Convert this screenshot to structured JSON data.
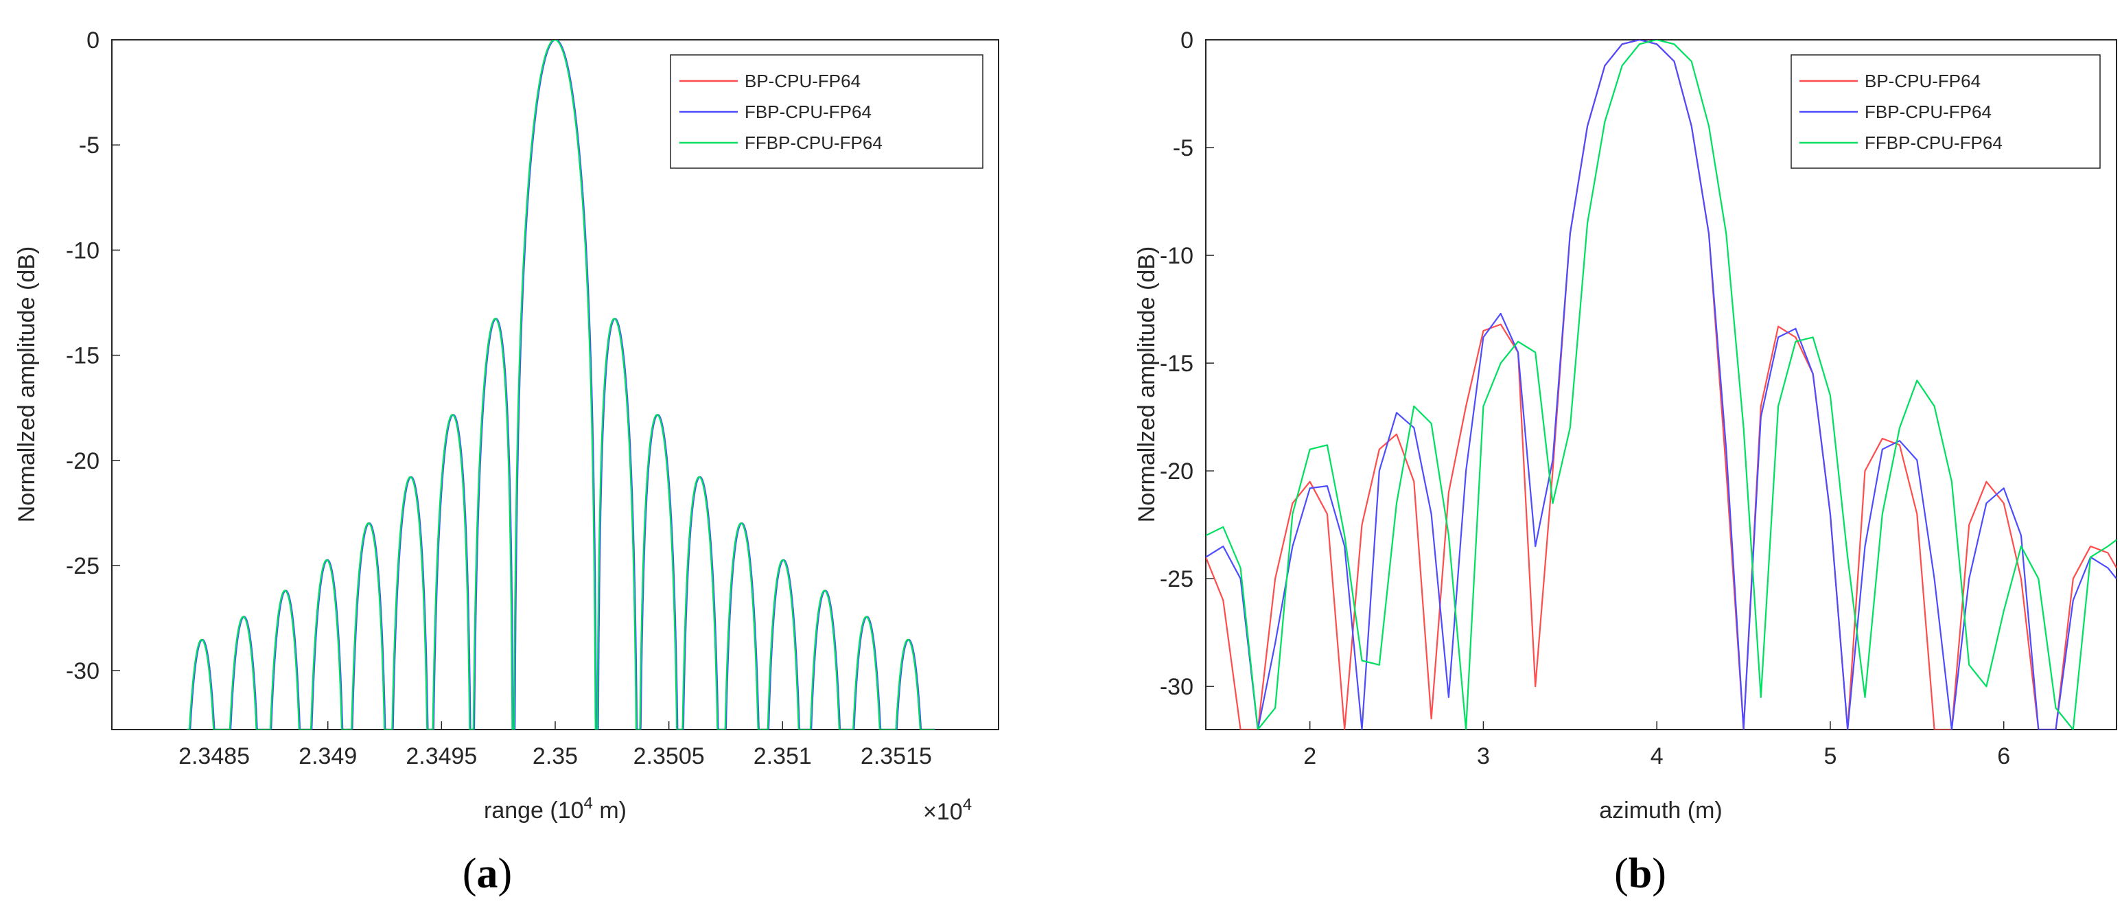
{
  "chart_data": [
    {
      "type": "line",
      "panel": "a",
      "caption": "a",
      "title": "",
      "xlabel_prefix": "range (10",
      "xlabel_exp": "4",
      "xlabel_suffix": " m)",
      "x_multiplier_base": "×10",
      "x_multiplier_exp": "4",
      "ylabel": "Normallzed amplitude (dB)",
      "xlim": [
        2.34805,
        2.35195
      ],
      "ylim": [
        -32.8,
        0
      ],
      "xticks": [
        2.3485,
        2.349,
        2.3495,
        2.35,
        2.3505,
        2.351,
        2.3515
      ],
      "xtick_labels": [
        "2.3485",
        "2.349",
        "2.3495",
        "2.35",
        "2.3505",
        "2.351",
        "2.3515"
      ],
      "yticks": [
        0,
        -5,
        -10,
        -15,
        -20,
        -25,
        -30
      ],
      "ytick_labels": [
        "0",
        "-5",
        "-10",
        "-15",
        "-20",
        "-25",
        "-30"
      ],
      "legend_position": "top-right",
      "grid": false,
      "sinc_model": {
        "center": 2.35,
        "null_spacing": 0.000183,
        "x_start": 2.34838,
        "x_end": 2.35167,
        "floor_db": -32.8
      },
      "series": [
        {
          "name": "BP-CPU-FP64",
          "color": "#ff4d4d"
        },
        {
          "name": "FBP-CPU-FP64",
          "color": "#4d4dff"
        },
        {
          "name": "FFBP-CPU-FP64",
          "color": "#00e060"
        }
      ]
    },
    {
      "type": "line",
      "panel": "b",
      "caption": "b",
      "title": "",
      "xlabel": "azimuth (m)",
      "ylabel": "Normallzed amplitude (dB)",
      "xlim": [
        1.4,
        6.65
      ],
      "ylim": [
        -32,
        0
      ],
      "xticks": [
        2,
        3,
        4,
        5,
        6
      ],
      "xtick_labels": [
        "2",
        "3",
        "4",
        "5",
        "6"
      ],
      "yticks": [
        0,
        -5,
        -10,
        -15,
        -20,
        -25,
        -30
      ],
      "ytick_labels": [
        "0",
        "-5",
        "-10",
        "-15",
        "-20",
        "-25",
        "-30"
      ],
      "legend_position": "top-right",
      "grid": false,
      "series": [
        {
          "name": "BP-CPU-FP64",
          "color": "#ff4d4d",
          "x": [
            1.4,
            1.5,
            1.6,
            1.7,
            1.8,
            1.9,
            2.0,
            2.1,
            2.2,
            2.3,
            2.4,
            2.5,
            2.6,
            2.7,
            2.8,
            2.9,
            3.0,
            3.1,
            3.2,
            3.3,
            3.4,
            3.5,
            3.6,
            3.7,
            3.8,
            3.9,
            4.0,
            4.1,
            4.2,
            4.3,
            4.4,
            4.5,
            4.6,
            4.7,
            4.8,
            4.9,
            5.0,
            5.1,
            5.2,
            5.3,
            5.4,
            5.5,
            5.6,
            5.7,
            5.8,
            5.9,
            6.0,
            6.1,
            6.2,
            6.3,
            6.4,
            6.5,
            6.6,
            6.65
          ],
          "y": [
            -24,
            -26,
            -32,
            -32,
            -25,
            -21.5,
            -20.5,
            -22,
            -32,
            -22.5,
            -19,
            -18.3,
            -20.5,
            -31.5,
            -21,
            -17,
            -13.5,
            -13.2,
            -14.5,
            -30,
            -20,
            -9,
            -4,
            -1.2,
            -0.2,
            0,
            -0.2,
            -1,
            -4,
            -9,
            -20,
            -32,
            -17,
            -13.3,
            -13.8,
            -15.5,
            -22,
            -32,
            -20,
            -18.5,
            -18.8,
            -22,
            -32,
            -32,
            -22.5,
            -20.5,
            -21.5,
            -25,
            -32,
            -32,
            -25,
            -23.5,
            -23.8,
            -24.5
          ]
        },
        {
          "name": "FBP-CPU-FP64",
          "color": "#4d4dff",
          "x": [
            1.4,
            1.5,
            1.6,
            1.7,
            1.8,
            1.9,
            2.0,
            2.1,
            2.2,
            2.3,
            2.4,
            2.5,
            2.6,
            2.7,
            2.8,
            2.9,
            3.0,
            3.1,
            3.2,
            3.3,
            3.4,
            3.5,
            3.6,
            3.7,
            3.8,
            3.9,
            4.0,
            4.1,
            4.2,
            4.3,
            4.4,
            4.5,
            4.6,
            4.7,
            4.8,
            4.9,
            5.0,
            5.1,
            5.2,
            5.3,
            5.4,
            5.5,
            5.6,
            5.7,
            5.8,
            5.9,
            6.0,
            6.1,
            6.2,
            6.3,
            6.4,
            6.5,
            6.6,
            6.65
          ],
          "y": [
            -24,
            -23.5,
            -25,
            -32,
            -28,
            -23.5,
            -20.8,
            -20.7,
            -23.5,
            -32,
            -20,
            -17.3,
            -18,
            -22,
            -30.5,
            -20,
            -13.8,
            -12.7,
            -14.5,
            -23.5,
            -19.5,
            -9,
            -4,
            -1.2,
            -0.2,
            0,
            -0.2,
            -1,
            -4,
            -9,
            -19,
            -32,
            -17.5,
            -13.8,
            -13.4,
            -15.5,
            -22,
            -32,
            -23.5,
            -19,
            -18.6,
            -19.5,
            -25,
            -32,
            -25,
            -21.5,
            -20.8,
            -23,
            -32,
            -32,
            -26,
            -24,
            -24.5,
            -25
          ]
        },
        {
          "name": "FFBP-CPU-FP64",
          "color": "#00e060",
          "x": [
            1.4,
            1.5,
            1.6,
            1.7,
            1.8,
            1.9,
            2.0,
            2.1,
            2.2,
            2.3,
            2.4,
            2.5,
            2.6,
            2.7,
            2.8,
            2.9,
            3.0,
            3.1,
            3.2,
            3.3,
            3.4,
            3.5,
            3.6,
            3.7,
            3.8,
            3.9,
            4.0,
            4.1,
            4.2,
            4.3,
            4.4,
            4.5,
            4.6,
            4.7,
            4.8,
            4.9,
            5.0,
            5.1,
            5.2,
            5.3,
            5.4,
            5.5,
            5.6,
            5.7,
            5.8,
            5.9,
            6.0,
            6.1,
            6.2,
            6.3,
            6.4,
            6.5,
            6.6,
            6.65
          ],
          "y": [
            -23,
            -22.6,
            -24.5,
            -32,
            -31,
            -22,
            -19,
            -18.8,
            -23,
            -28.8,
            -29,
            -21.5,
            -17,
            -17.8,
            -23,
            -32,
            -17,
            -15,
            -14,
            -14.5,
            -21.5,
            -18,
            -8.5,
            -3.8,
            -1.2,
            -0.2,
            0,
            -0.2,
            -1,
            -4,
            -9,
            -18,
            -30.5,
            -17,
            -14,
            -13.8,
            -16.5,
            -24,
            -30.5,
            -22,
            -18,
            -15.8,
            -17,
            -20.5,
            -29,
            -30,
            -26.5,
            -23.5,
            -25,
            -31,
            -32,
            -24,
            -23.5,
            -23.2
          ]
        }
      ]
    }
  ]
}
